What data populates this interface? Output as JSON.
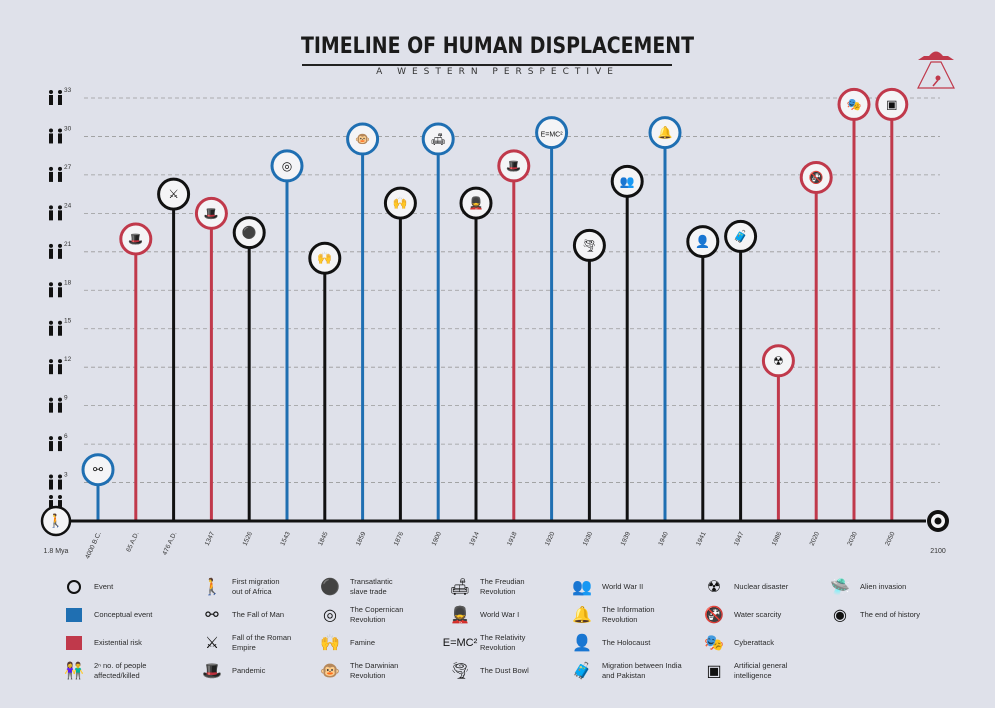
{
  "header": {
    "title": "TIMELINE OF HUMAN DISPLACEMENT",
    "subtitle": "A WESTERN PERSPECTIVE"
  },
  "colors": {
    "event": "#111111",
    "conceptual": "#1f6fb2",
    "existential": "#c0394b",
    "grid": "#9a9a9a",
    "background": "#dfe1ea"
  },
  "chart_data": {
    "type": "timeline-lollipop",
    "title": "TIMELINE OF HUMAN DISPLACEMENT",
    "subtitle": "A WESTERN PERSPECTIVE",
    "y_ticks": [
      3,
      6,
      9,
      12,
      15,
      18,
      21,
      24,
      27,
      30,
      33
    ],
    "ylim": [
      0,
      33
    ],
    "axis_start_label": "1.8 Mya",
    "axis_end_label": "2100",
    "grid": true,
    "events": [
      {
        "x": "4000 B.C.",
        "y": 4,
        "category": "conceptual",
        "icon": "fall-of-man-icon"
      },
      {
        "x": "65 A.D.",
        "y": 22,
        "category": "existential",
        "icon": "pandemic-icon"
      },
      {
        "x": "476 A.D.",
        "y": 25.5,
        "category": "event",
        "icon": "fall-of-roman-empire-icon"
      },
      {
        "x": "1347",
        "y": 24,
        "category": "existential",
        "icon": "pandemic-icon"
      },
      {
        "x": "1526",
        "y": 22.5,
        "category": "event",
        "icon": "transatlantic-slave-trade-icon"
      },
      {
        "x": "1543",
        "y": 27.7,
        "category": "conceptual",
        "icon": "copernican-revolution-icon"
      },
      {
        "x": "1845",
        "y": 20.5,
        "category": "event",
        "icon": "famine-icon"
      },
      {
        "x": "1859",
        "y": 29.8,
        "category": "conceptual",
        "icon": "darwinian-revolution-icon"
      },
      {
        "x": "1876",
        "y": 24.8,
        "category": "event",
        "icon": "famine-icon"
      },
      {
        "x": "1900",
        "y": 29.8,
        "category": "conceptual",
        "icon": "freudian-revolution-icon"
      },
      {
        "x": "1914",
        "y": 24.8,
        "category": "event",
        "icon": "world-war-i-icon"
      },
      {
        "x": "1918",
        "y": 27.7,
        "category": "existential",
        "icon": "pandemic-icon"
      },
      {
        "x": "1920",
        "y": 30.3,
        "category": "conceptual",
        "icon": "relativity-revolution-icon"
      },
      {
        "x": "1930",
        "y": 21.5,
        "category": "event",
        "icon": "dust-bowl-icon"
      },
      {
        "x": "1939",
        "y": 26.5,
        "category": "event",
        "icon": "world-war-ii-icon"
      },
      {
        "x": "1940",
        "y": 30.3,
        "category": "conceptual",
        "icon": "information-revolution-icon"
      },
      {
        "x": "1941",
        "y": 21.8,
        "category": "event",
        "icon": "holocaust-icon"
      },
      {
        "x": "1947",
        "y": 22.2,
        "category": "event",
        "icon": "migration-india-pakistan-icon"
      },
      {
        "x": "1986",
        "y": 12.5,
        "category": "existential",
        "icon": "nuclear-disaster-icon"
      },
      {
        "x": "2020",
        "y": 26.8,
        "category": "existential",
        "icon": "water-scarcity-icon"
      },
      {
        "x": "2030",
        "y": 32.5,
        "category": "existential",
        "icon": "cyberattack-icon"
      },
      {
        "x": "2050",
        "y": 32.5,
        "category": "existential",
        "icon": "artificial-intelligence-icon"
      }
    ]
  },
  "legend": {
    "col1": [
      {
        "key": "event",
        "label": "Event"
      },
      {
        "key": "conceptual",
        "label": "Conceptual event"
      },
      {
        "key": "existential",
        "label": "Existential risk"
      },
      {
        "key": "people",
        "label": "2ⁿ no. of people affected/killed"
      }
    ],
    "col2": [
      {
        "icon": "first-migration-icon",
        "label": "First migration out of Africa"
      },
      {
        "icon": "fall-of-man-icon",
        "label": "The Fall of Man"
      },
      {
        "icon": "fall-of-roman-empire-icon",
        "label": "Fall of the Roman Empire"
      },
      {
        "icon": "pandemic-icon",
        "label": "Pandemic"
      }
    ],
    "col3": [
      {
        "icon": "transatlantic-slave-trade-icon",
        "label": "Transatlantic slave trade"
      },
      {
        "icon": "copernican-revolution-icon",
        "label": "The Copernican Revolution"
      },
      {
        "icon": "famine-icon",
        "label": "Famine"
      },
      {
        "icon": "darwinian-revolution-icon",
        "label": "The Darwinian Revolution"
      }
    ],
    "col4": [
      {
        "icon": "freudian-revolution-icon",
        "label": "The Freudian Revolution"
      },
      {
        "icon": "world-war-i-icon",
        "label": "World War I"
      },
      {
        "icon": "relativity-revolution-icon",
        "label": "The Relativity Revolution"
      },
      {
        "icon": "dust-bowl-icon",
        "label": "The Dust Bowl"
      }
    ],
    "col5": [
      {
        "icon": "world-war-ii-icon",
        "label": "World War II"
      },
      {
        "icon": "information-revolution-icon",
        "label": "The Information Revolution"
      },
      {
        "icon": "holocaust-icon",
        "label": "The Holocaust"
      },
      {
        "icon": "migration-india-pakistan-icon",
        "label": "Migration between India and Pakistan"
      }
    ],
    "col6": [
      {
        "icon": "nuclear-disaster-icon",
        "label": "Nuclear disaster"
      },
      {
        "icon": "water-scarcity-icon",
        "label": "Water scarcity"
      },
      {
        "icon": "cyberattack-icon",
        "label": "Cyberattack"
      },
      {
        "icon": "artificial-intelligence-icon",
        "label": "Artificial general intelligence"
      }
    ],
    "col7": [
      {
        "icon": "alien-invasion-icon",
        "label": "Alien invasion"
      },
      {
        "icon": "end-of-history-icon",
        "label": "The end of history"
      }
    ]
  }
}
